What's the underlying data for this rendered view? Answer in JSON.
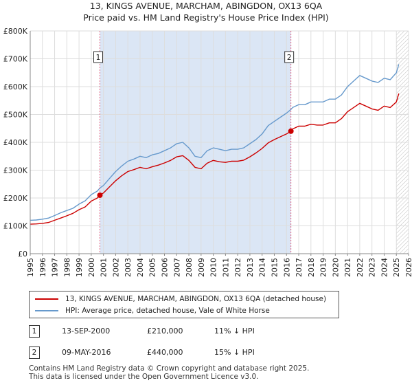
{
  "title_line1": "13, KINGS AVENUE, MARCHAM, ABINGDON, OX13 6QA",
  "title_line2": "Price paid vs. HM Land Registry's House Price Index (HPI)",
  "colors": {
    "property": "#cc0000",
    "hpi": "#6699cc",
    "shade": "#dbe6f5",
    "grid": "#dddddd",
    "marker_line": "#e06080"
  },
  "chart_data": {
    "type": "line",
    "ylim": [
      0,
      800000
    ],
    "xlim": [
      1995,
      2026
    ],
    "yticks": [
      0,
      100000,
      200000,
      300000,
      400000,
      500000,
      600000,
      700000,
      800000
    ],
    "ytick_labels": [
      "£0",
      "£100K",
      "£200K",
      "£300K",
      "£400K",
      "£500K",
      "£600K",
      "£700K",
      "£800K"
    ],
    "xticks": [
      1995,
      1996,
      1997,
      1998,
      1999,
      2000,
      2001,
      2002,
      2003,
      2004,
      2005,
      2006,
      2007,
      2008,
      2009,
      2010,
      2011,
      2012,
      2013,
      2014,
      2015,
      2016,
      2017,
      2018,
      2019,
      2020,
      2021,
      2022,
      2023,
      2024,
      2025,
      2026
    ],
    "shaded_spans": [
      [
        2000.71,
        2016.36
      ]
    ],
    "hatched_from": 2025.0,
    "series": [
      {
        "name": "HPI: Average price, detached house, Vale of White Horse",
        "color": "#6699cc",
        "x": [
          1995,
          1995.5,
          1996,
          1996.5,
          1997,
          1997.5,
          1998,
          1998.5,
          1999,
          1999.5,
          2000,
          2000.5,
          2000.71,
          2001,
          2001.5,
          2002,
          2002.5,
          2003,
          2003.5,
          2004,
          2004.5,
          2005,
          2005.5,
          2006,
          2006.5,
          2007,
          2007.5,
          2008,
          2008.5,
          2009,
          2009.5,
          2010,
          2010.5,
          2011,
          2011.5,
          2012,
          2012.5,
          2013,
          2013.5,
          2014,
          2014.5,
          2015,
          2015.5,
          2016,
          2016.36,
          2016.5,
          2017,
          2017.5,
          2018,
          2018.5,
          2019,
          2019.5,
          2020,
          2020.5,
          2021,
          2021.5,
          2022,
          2022.5,
          2023,
          2023.5,
          2024,
          2024.5,
          2025,
          2025.2
        ],
        "values": [
          120000,
          121000,
          124000,
          128000,
          137000,
          147000,
          155000,
          163000,
          178000,
          190000,
          212000,
          225000,
          236000,
          245000,
          270000,
          295000,
          315000,
          332000,
          340000,
          350000,
          345000,
          355000,
          360000,
          370000,
          380000,
          395000,
          400000,
          380000,
          350000,
          345000,
          370000,
          380000,
          375000,
          370000,
          375000,
          375000,
          380000,
          395000,
          410000,
          430000,
          460000,
          475000,
          490000,
          505000,
          518000,
          525000,
          535000,
          535000,
          545000,
          545000,
          545000,
          555000,
          555000,
          570000,
          600000,
          620000,
          640000,
          630000,
          620000,
          615000,
          630000,
          625000,
          650000,
          680000
        ]
      },
      {
        "name": "13, KINGS AVENUE, MARCHAM, ABINGDON, OX13 6QA (detached house)",
        "color": "#cc0000",
        "x": [
          1995,
          1995.5,
          1996,
          1996.5,
          1997,
          1997.5,
          1998,
          1998.5,
          1999,
          1999.5,
          2000,
          2000.5,
          2000.71,
          2001,
          2001.5,
          2002,
          2002.5,
          2003,
          2003.5,
          2004,
          2004.5,
          2005,
          2005.5,
          2006,
          2006.5,
          2007,
          2007.5,
          2008,
          2008.5,
          2009,
          2009.5,
          2010,
          2010.5,
          2011,
          2011.5,
          2012,
          2012.5,
          2013,
          2013.5,
          2014,
          2014.5,
          2015,
          2015.5,
          2016,
          2016.36,
          2016.5,
          2017,
          2017.5,
          2018,
          2018.5,
          2019,
          2019.5,
          2020,
          2020.5,
          2021,
          2021.5,
          2022,
          2022.5,
          2023,
          2023.5,
          2024,
          2024.5,
          2025,
          2025.2
        ],
        "values": [
          106000,
          107000,
          109000,
          112000,
          120000,
          128000,
          136000,
          145000,
          158000,
          168000,
          189000,
          200000,
          210000,
          218000,
          240000,
          262000,
          280000,
          295000,
          302000,
          310000,
          305000,
          312000,
          318000,
          326000,
          335000,
          348000,
          352000,
          335000,
          310000,
          305000,
          325000,
          335000,
          330000,
          328000,
          332000,
          332000,
          336000,
          348000,
          362000,
          378000,
          398000,
          410000,
          420000,
          430000,
          440000,
          448000,
          458000,
          458000,
          465000,
          462000,
          462000,
          470000,
          470000,
          485000,
          510000,
          525000,
          540000,
          530000,
          520000,
          515000,
          530000,
          525000,
          545000,
          575000
        ]
      }
    ],
    "markers": [
      {
        "label": "1",
        "x": 2000.71,
        "value": 210000
      },
      {
        "label": "2",
        "x": 2016.36,
        "value": 440000
      }
    ],
    "legend": "below"
  },
  "legend_items": [
    "13, KINGS AVENUE, MARCHAM, ABINGDON, OX13 6QA (detached house)",
    "HPI: Average price, detached house, Vale of White Horse"
  ],
  "sales": [
    {
      "num": "1",
      "date": "13-SEP-2000",
      "price": "£210,000",
      "hpi": "11% ↓ HPI"
    },
    {
      "num": "2",
      "date": "09-MAY-2016",
      "price": "£440,000",
      "hpi": "15% ↓ HPI"
    }
  ],
  "footer_line1": "Contains HM Land Registry data © Crown copyright and database right 2025.",
  "footer_line2": "This data is licensed under the Open Government Licence v3.0."
}
